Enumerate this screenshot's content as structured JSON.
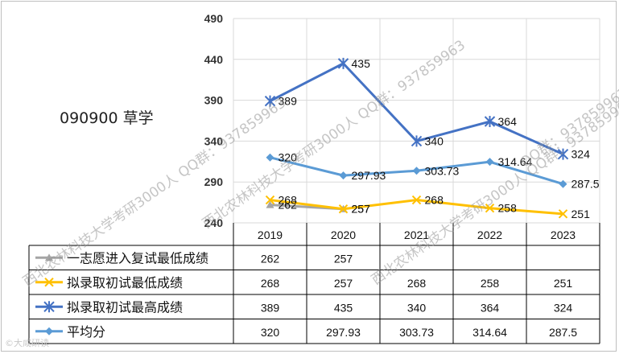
{
  "title": "090900 草学",
  "chart_data": {
    "type": "line",
    "title": "090900 草学",
    "categories": [
      "2019",
      "2020",
      "2021",
      "2022",
      "2023"
    ],
    "ylim": [
      240,
      490
    ],
    "yticks": [
      240,
      290,
      340,
      390,
      440,
      490
    ],
    "grid": true,
    "legend": "data-table-bottom",
    "series": [
      {
        "name": "一志愿进入复试最低成绩",
        "color": "#a5a5a5",
        "marker": "triangle",
        "values": [
          262,
          257,
          null,
          null,
          null
        ],
        "labels": [
          "262",
          "257",
          "",
          "",
          ""
        ]
      },
      {
        "name": "拟录取初试最低成绩",
        "color": "#ffc000",
        "marker": "x",
        "values": [
          268,
          257,
          268,
          258,
          251
        ],
        "labels": [
          "268",
          "257",
          "268",
          "258",
          "251"
        ]
      },
      {
        "name": "拟录取初试最高成绩",
        "color": "#4472c4",
        "marker": "star",
        "values": [
          389,
          435,
          340,
          364,
          324
        ],
        "labels": [
          "389",
          "435",
          "340",
          "364",
          "324"
        ]
      },
      {
        "name": "平均分",
        "color": "#5b9bd5",
        "marker": "diamond",
        "values": [
          320,
          297.93,
          303.73,
          314.64,
          287.5
        ],
        "labels": [
          "320",
          "297.93",
          "303.73",
          "314.64",
          "287.5"
        ]
      }
    ]
  },
  "watermarks": {
    "wm1": "西北农林科技大学考研3000人 QQ群：937859963",
    "wm2": "西北农林科技大学考研3000人 QQ群：937859963",
    "wm3": "西北农林科技大学考研3000人 QQ群：937859963",
    "wm4": "QQ群：937859963"
  },
  "corner_mark": "©大咸研读"
}
